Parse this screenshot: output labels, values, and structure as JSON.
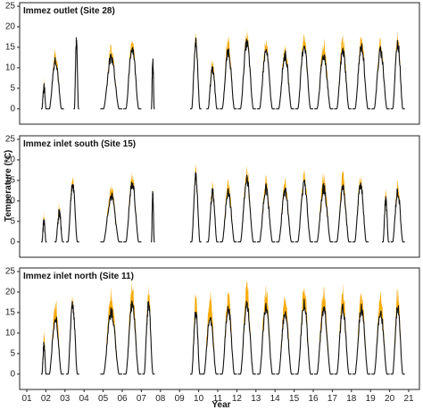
{
  "chart_data": {
    "type": "line",
    "xlabel": "Year",
    "ylabel": "Temperature (°C)",
    "x_ticks": [
      "01",
      "02",
      "03",
      "04",
      "05",
      "06",
      "07",
      "08",
      "09",
      "10",
      "11",
      "12",
      "13",
      "14",
      "15",
      "16",
      "17",
      "18",
      "19",
      "20",
      "21"
    ],
    "ylim": [
      -2,
      25
    ],
    "y_ticks": [
      0,
      5,
      10,
      15,
      20,
      25
    ],
    "grid": false,
    "series_colors": {
      "range": "#f5a800",
      "mean": "#111111"
    },
    "panels": [
      {
        "title": "Immez outlet (Site 28)",
        "segments": [
          {
            "start": 1.75,
            "end": 2.05,
            "peak": 5.5,
            "range": 1.5
          },
          {
            "start": 2.05,
            "end": 2.95,
            "peak": 12,
            "range": 2
          },
          {
            "start": 3.45,
            "end": 3.75,
            "peak": 16.5,
            "range": 1
          },
          {
            "start": 4.85,
            "end": 6.0,
            "peak": 12.5,
            "range": 2
          },
          {
            "start": 6.05,
            "end": 7.0,
            "peak": 15,
            "range": 2
          },
          {
            "start": 7.5,
            "end": 7.7,
            "peak": 12,
            "range": 1
          },
          {
            "start": 9.55,
            "end": 10.15,
            "peak": 16,
            "range": 2
          },
          {
            "start": 10.4,
            "end": 11.05,
            "peak": 10,
            "range": 2
          },
          {
            "start": 11.1,
            "end": 12.0,
            "peak": 14,
            "range": 3
          },
          {
            "start": 12.05,
            "end": 13.0,
            "peak": 16,
            "range": 2
          },
          {
            "start": 13.05,
            "end": 14.0,
            "peak": 14,
            "range": 2
          },
          {
            "start": 14.05,
            "end": 15.0,
            "peak": 13,
            "range": 2
          },
          {
            "start": 15.05,
            "end": 16.0,
            "peak": 15.5,
            "range": 2.5
          },
          {
            "start": 16.05,
            "end": 17.05,
            "peak": 13,
            "range": 3
          },
          {
            "start": 17.1,
            "end": 18.0,
            "peak": 14,
            "range": 3
          },
          {
            "start": 18.05,
            "end": 19.0,
            "peak": 15,
            "range": 2
          },
          {
            "start": 19.05,
            "end": 20.0,
            "peak": 14,
            "range": 2
          },
          {
            "start": 20.05,
            "end": 20.8,
            "peak": 16,
            "range": 2
          }
        ]
      },
      {
        "title": "Immez inlet south (Site 15)",
        "segments": [
          {
            "start": 1.75,
            "end": 2.05,
            "peak": 5,
            "range": 1.5
          },
          {
            "start": 2.45,
            "end": 2.95,
            "peak": 7,
            "range": 1.5
          },
          {
            "start": 3.05,
            "end": 3.75,
            "peak": 14,
            "range": 1.5
          },
          {
            "start": 4.85,
            "end": 6.0,
            "peak": 11,
            "range": 2
          },
          {
            "start": 6.05,
            "end": 7.0,
            "peak": 14,
            "range": 2
          },
          {
            "start": 7.5,
            "end": 7.7,
            "peak": 12,
            "range": 1
          },
          {
            "start": 9.55,
            "end": 10.15,
            "peak": 16,
            "range": 2
          },
          {
            "start": 10.4,
            "end": 11.05,
            "peak": 12,
            "range": 2
          },
          {
            "start": 11.1,
            "end": 12.0,
            "peak": 12,
            "range": 2.5
          },
          {
            "start": 12.05,
            "end": 13.0,
            "peak": 15,
            "range": 2
          },
          {
            "start": 13.05,
            "end": 14.0,
            "peak": 13,
            "range": 2
          },
          {
            "start": 14.05,
            "end": 15.0,
            "peak": 12,
            "range": 2
          },
          {
            "start": 15.05,
            "end": 16.0,
            "peak": 14,
            "range": 2
          },
          {
            "start": 16.05,
            "end": 17.05,
            "peak": 13,
            "range": 3
          },
          {
            "start": 17.1,
            "end": 18.0,
            "peak": 13,
            "range": 3
          },
          {
            "start": 18.05,
            "end": 18.9,
            "peak": 14,
            "range": 2
          },
          {
            "start": 19.6,
            "end": 20.0,
            "peak": 10,
            "range": 2
          },
          {
            "start": 20.05,
            "end": 20.8,
            "peak": 12,
            "range": 2
          }
        ]
      },
      {
        "title": "Immez inlet north (Site 11)",
        "segments": [
          {
            "start": 1.75,
            "end": 2.05,
            "peak": 7,
            "range": 3
          },
          {
            "start": 2.05,
            "end": 2.95,
            "peak": 14,
            "range": 4
          },
          {
            "start": 3.05,
            "end": 3.75,
            "peak": 17,
            "range": 1.5
          },
          {
            "start": 4.85,
            "end": 6.0,
            "peak": 15,
            "range": 4
          },
          {
            "start": 6.05,
            "end": 7.0,
            "peak": 17,
            "range": 4
          },
          {
            "start": 7.05,
            "end": 7.7,
            "peak": 17,
            "range": 3
          },
          {
            "start": 9.55,
            "end": 10.15,
            "peak": 15,
            "range": 4
          },
          {
            "start": 10.15,
            "end": 11.05,
            "peak": 14,
            "range": 5
          },
          {
            "start": 11.1,
            "end": 12.0,
            "peak": 16,
            "range": 4
          },
          {
            "start": 12.05,
            "end": 13.0,
            "peak": 17,
            "range": 4
          },
          {
            "start": 13.05,
            "end": 14.0,
            "peak": 16,
            "range": 4
          },
          {
            "start": 14.05,
            "end": 15.0,
            "peak": 15,
            "range": 4
          },
          {
            "start": 15.05,
            "end": 16.0,
            "peak": 17,
            "range": 4
          },
          {
            "start": 16.05,
            "end": 17.05,
            "peak": 16,
            "range": 4
          },
          {
            "start": 17.1,
            "end": 18.0,
            "peak": 16,
            "range": 4
          },
          {
            "start": 18.05,
            "end": 19.0,
            "peak": 16,
            "range": 4
          },
          {
            "start": 19.05,
            "end": 20.0,
            "peak": 15,
            "range": 4
          },
          {
            "start": 20.05,
            "end": 20.8,
            "peak": 16,
            "range": 4
          }
        ]
      }
    ]
  }
}
